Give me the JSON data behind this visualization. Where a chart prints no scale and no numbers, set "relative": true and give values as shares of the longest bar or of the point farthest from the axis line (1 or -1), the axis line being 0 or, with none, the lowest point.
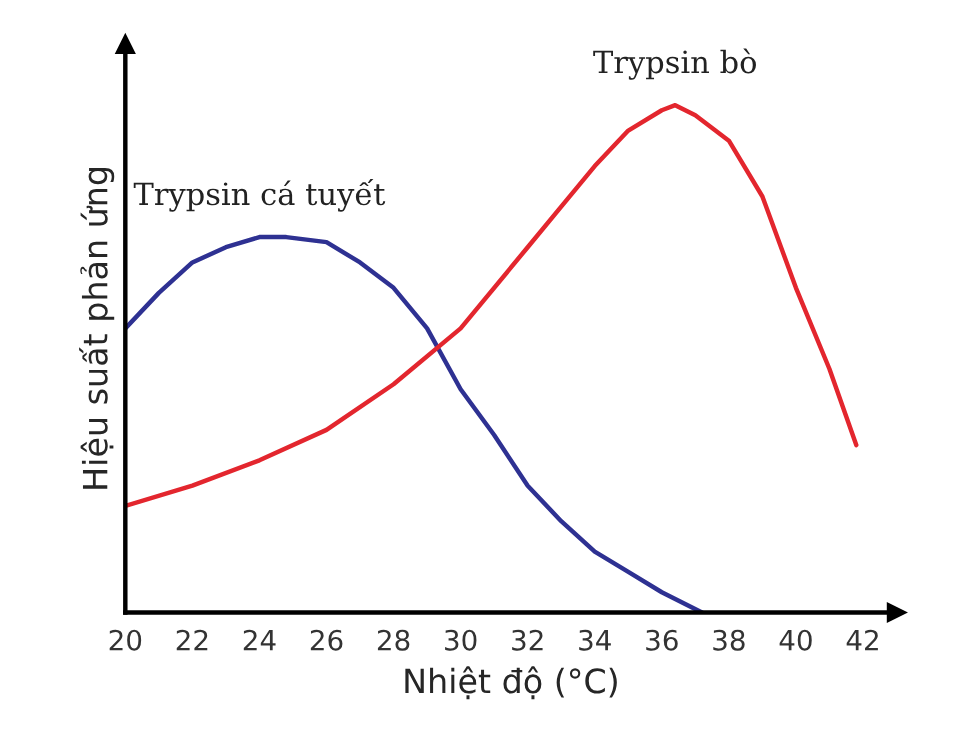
{
  "chart_data": {
    "type": "line",
    "xlabel": "Nhiệt độ (°C)",
    "ylabel": "Hiệu suất phản ứng",
    "relative": true,
    "xlim": [
      20,
      43
    ],
    "xticks": [
      20,
      22,
      24,
      26,
      28,
      30,
      32,
      34,
      36,
      38,
      40,
      42
    ],
    "grid": false,
    "legend": false,
    "marker": "none",
    "line_style": "solid",
    "series": [
      {
        "name": "Trypsin cá tuyết",
        "color": "#2e3192",
        "x": [
          20,
          21,
          22,
          23,
          24,
          24.8,
          26,
          27,
          28,
          29,
          30,
          31,
          32,
          33,
          34,
          35,
          36,
          37.2
        ],
        "values": [
          0.56,
          0.63,
          0.69,
          0.72,
          0.74,
          0.74,
          0.73,
          0.69,
          0.64,
          0.56,
          0.44,
          0.35,
          0.25,
          0.18,
          0.12,
          0.08,
          0.04,
          0
        ]
      },
      {
        "name": "Trypsin bò",
        "color": "#e3262e",
        "x": [
          20,
          22,
          24,
          26,
          28,
          30,
          32,
          33,
          34,
          35,
          36,
          36.4,
          37,
          38,
          39,
          40,
          41,
          41.8
        ],
        "values": [
          0.21,
          0.25,
          0.3,
          0.36,
          0.45,
          0.56,
          0.72,
          0.8,
          0.88,
          0.95,
          0.99,
          1.0,
          0.98,
          0.93,
          0.82,
          0.64,
          0.48,
          0.33
        ]
      }
    ]
  }
}
